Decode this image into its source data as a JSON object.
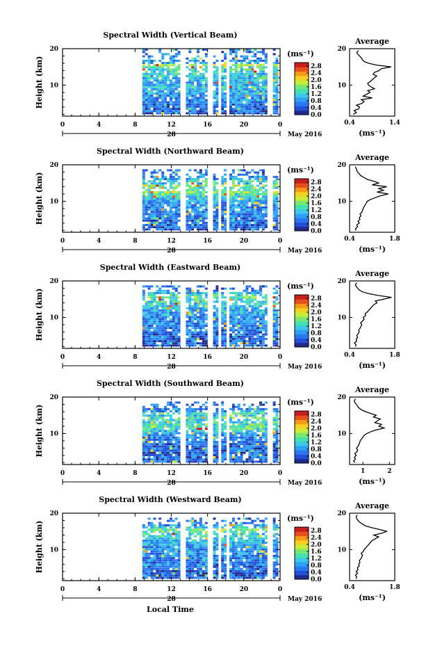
{
  "chart_data": [
    {
      "type": "heatmap",
      "title": "Spectral Width (Vertical Beam)",
      "ylabel": "Height (km)",
      "ylim": [
        1.5,
        20
      ],
      "yticks": [
        "20",
        "10"
      ],
      "xlim": [
        0,
        24
      ],
      "xticks": [
        "0",
        "4",
        "8",
        "12",
        "16",
        "20",
        "0"
      ],
      "date_label": "28",
      "month_label": "May 2016",
      "colorbar": {
        "unit": "(ms⁻¹)",
        "ticks": [
          "2.8",
          "2.4",
          "2.0",
          "1.6",
          "1.2",
          "0.8",
          "0.4",
          "0.0"
        ],
        "range": [
          0,
          3.0
        ]
      },
      "average": {
        "title": "Average",
        "xlabel": "(ms⁻¹)",
        "xlim": [
          0.4,
          1.4
        ],
        "xticks": [
          "0.4",
          "1.4"
        ],
        "heights": [
          2,
          2.5,
          3,
          3.5,
          4,
          4.5,
          5,
          5.5,
          6,
          6.5,
          7,
          7.5,
          8,
          8.5,
          9,
          9.5,
          10,
          10.5,
          11,
          11.5,
          12,
          12.5,
          13,
          13.5,
          14,
          14.5,
          15,
          15.5,
          16,
          16.5,
          17,
          17.5,
          18,
          18.5,
          19,
          19.5
        ],
        "values": [
          0.48,
          0.55,
          0.5,
          0.6,
          0.62,
          0.55,
          0.68,
          0.72,
          0.66,
          0.9,
          0.7,
          0.78,
          0.85,
          0.8,
          0.95,
          0.88,
          0.82,
          0.8,
          0.86,
          0.9,
          0.95,
          1.0,
          0.92,
          0.95,
          1.05,
          1.1,
          1.32,
          1.0,
          0.82,
          0.72,
          0.68,
          0.66,
          0.62,
          0.58,
          0.56,
          0.6
        ]
      }
    },
    {
      "type": "heatmap",
      "title": "Spectral Width (Northward Beam)",
      "ylabel": "Height (km)",
      "ylim": [
        1.5,
        20
      ],
      "yticks": [
        "20",
        "10"
      ],
      "xlim": [
        0,
        24
      ],
      "xticks": [
        "0",
        "4",
        "8",
        "12",
        "16",
        "20",
        "0"
      ],
      "date_label": "28",
      "month_label": "May 2016",
      "colorbar": {
        "unit": "(ms⁻¹)",
        "ticks": [
          "2.8",
          "2.4",
          "2.0",
          "1.6",
          "1.2",
          "0.8",
          "0.4",
          "0.0"
        ],
        "range": [
          0,
          3.0
        ]
      },
      "average": {
        "title": "Average",
        "xlabel": "(ms⁻¹)",
        "xlim": [
          0.4,
          1.8
        ],
        "xticks": [
          "0.4",
          "1.8"
        ],
        "heights": [
          2,
          2.5,
          3,
          3.5,
          4,
          4.5,
          5,
          5.5,
          6,
          6.5,
          7,
          7.5,
          8,
          8.5,
          9,
          9.5,
          10,
          10.5,
          11,
          11.5,
          12,
          12.5,
          13,
          13.5,
          14,
          14.5,
          15,
          15.5,
          16,
          16.5,
          17,
          17.5,
          18,
          18.5,
          19,
          19.5
        ],
        "values": [
          0.6,
          0.58,
          0.65,
          0.62,
          0.7,
          0.66,
          0.72,
          0.7,
          0.75,
          0.72,
          0.78,
          0.8,
          0.82,
          0.85,
          0.88,
          0.92,
          0.95,
          1.05,
          1.2,
          1.35,
          1.6,
          1.25,
          1.45,
          1.3,
          1.55,
          1.1,
          1.3,
          1.15,
          0.95,
          0.85,
          0.75,
          0.7,
          0.65,
          0.62,
          0.6,
          0.58
        ]
      }
    },
    {
      "type": "heatmap",
      "title": "Spectral Width (Eastward Beam)",
      "ylabel": "Height (km)",
      "ylim": [
        1.5,
        20
      ],
      "yticks": [
        "20",
        "10"
      ],
      "xlim": [
        0,
        24
      ],
      "xticks": [
        "0",
        "4",
        "8",
        "12",
        "16",
        "20",
        "0"
      ],
      "date_label": "28",
      "month_label": "May 2016",
      "colorbar": {
        "unit": "(ms⁻¹)",
        "ticks": [
          "2.8",
          "2.4",
          "2.0",
          "1.6",
          "1.2",
          "0.8",
          "0.4",
          "0.0"
        ],
        "range": [
          0,
          3.0
        ]
      },
      "average": {
        "title": "Average",
        "xlabel": "(ms⁻¹)",
        "xlim": [
          0.4,
          1.8
        ],
        "xticks": [
          "0.4",
          "1.8"
        ],
        "heights": [
          2,
          2.5,
          3,
          3.5,
          4,
          4.5,
          5,
          5.5,
          6,
          6.5,
          7,
          7.5,
          8,
          8.5,
          9,
          9.5,
          10,
          10.5,
          11,
          11.5,
          12,
          12.5,
          13,
          13.5,
          14,
          14.5,
          15,
          15.5,
          16,
          16.5,
          17,
          17.5,
          18,
          18.5,
          19,
          19.5
        ],
        "values": [
          0.58,
          0.6,
          0.55,
          0.62,
          0.6,
          0.65,
          0.62,
          0.66,
          0.7,
          0.68,
          0.72,
          0.75,
          0.78,
          0.74,
          0.8,
          0.85,
          0.82,
          0.9,
          0.88,
          0.95,
          1.0,
          1.05,
          1.1,
          1.15,
          1.25,
          1.2,
          1.45,
          1.7,
          1.3,
          1.0,
          0.8,
          0.7,
          0.65,
          0.6,
          0.58,
          0.62
        ]
      }
    },
    {
      "type": "heatmap",
      "title": "Spectral Width (Southward Beam)",
      "ylabel": "Height (km)",
      "ylim": [
        1.5,
        20
      ],
      "yticks": [
        "20",
        "10"
      ],
      "xlim": [
        0,
        24
      ],
      "xticks": [
        "0",
        "4",
        "8",
        "12",
        "16",
        "20",
        "0"
      ],
      "date_label": "28",
      "month_label": "May 2016",
      "colorbar": {
        "unit": "(ms⁻¹)",
        "ticks": [
          "2.8",
          "2.4",
          "2.0",
          "1.6",
          "1.2",
          "0.8",
          "0.4",
          "0.0"
        ],
        "range": [
          0,
          3.0
        ]
      },
      "average": {
        "title": "Average",
        "xlabel": "(ms⁻¹)",
        "xlim": [
          0.5,
          2.2
        ],
        "xticks": [
          "1",
          "2"
        ],
        "heights": [
          2,
          2.5,
          3,
          3.5,
          4,
          4.5,
          5,
          5.5,
          6,
          6.5,
          7,
          7.5,
          8,
          8.5,
          9,
          9.5,
          10,
          10.5,
          11,
          11.5,
          12,
          12.5,
          13,
          13.5,
          14,
          14.5,
          15,
          15.5,
          16,
          16.5,
          17,
          17.5,
          18,
          18.5,
          19,
          19.5
        ],
        "values": [
          0.7,
          0.65,
          0.72,
          0.68,
          0.75,
          0.7,
          0.78,
          0.8,
          0.76,
          0.82,
          0.85,
          0.88,
          0.9,
          0.95,
          1.0,
          1.05,
          1.15,
          1.3,
          1.5,
          1.8,
          1.6,
          1.7,
          1.45,
          1.55,
          1.65,
          1.4,
          1.5,
          1.3,
          1.1,
          0.95,
          0.85,
          0.8,
          0.75,
          0.7,
          0.68,
          0.72
        ]
      }
    },
    {
      "type": "heatmap",
      "title": "Spectral Width (Westward Beam)",
      "ylabel": "Height (km)",
      "ylim": [
        1.5,
        20
      ],
      "yticks": [
        "20",
        "10"
      ],
      "xlim": [
        0,
        24
      ],
      "xticks": [
        "0",
        "4",
        "8",
        "12",
        "16",
        "20",
        "0"
      ],
      "date_label": "28",
      "month_label": "May 2016",
      "xlabel": "Local Time",
      "colorbar": {
        "unit": "(ms⁻¹)",
        "ticks": [
          "2.8",
          "2.4",
          "2.0",
          "1.6",
          "1.2",
          "0.8",
          "0.4",
          "0.0"
        ],
        "range": [
          0,
          3.0
        ]
      },
      "average": {
        "title": "Average",
        "xlabel": "(ms⁻¹)",
        "xlim": [
          0.4,
          1.8
        ],
        "xticks": [
          "0.4",
          "1.8"
        ],
        "heights": [
          2,
          2.5,
          3,
          3.5,
          4,
          4.5,
          5,
          5.5,
          6,
          6.5,
          7,
          7.5,
          8,
          8.5,
          9,
          9.5,
          10,
          10.5,
          11,
          11.5,
          12,
          12.5,
          13,
          13.5,
          14,
          14.5,
          15,
          15.5,
          16,
          16.5,
          17,
          17.5,
          18,
          18.5,
          19,
          19.5
        ],
        "values": [
          0.6,
          0.62,
          0.58,
          0.65,
          0.6,
          0.66,
          0.64,
          0.7,
          0.68,
          0.72,
          0.7,
          0.75,
          0.78,
          0.8,
          0.76,
          0.82,
          0.85,
          0.9,
          0.95,
          1.0,
          1.05,
          1.1,
          1.2,
          1.3,
          1.15,
          1.4,
          1.55,
          1.35,
          1.1,
          0.9,
          0.8,
          0.72,
          0.66,
          0.62,
          0.6,
          0.64
        ]
      }
    }
  ]
}
